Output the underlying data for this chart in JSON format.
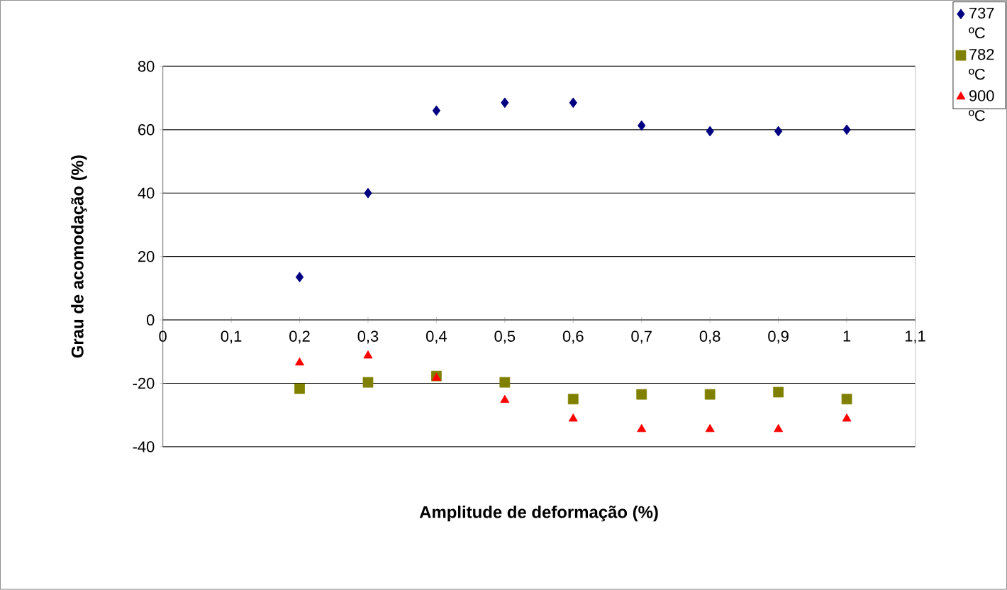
{
  "chart_data": {
    "type": "scatter",
    "xlabel": "Amplitude de deformação (%)",
    "ylabel": "Grau de acomodação (%)",
    "x": [
      0.2,
      0.3,
      0.4,
      0.5,
      0.6,
      0.7,
      0.8,
      0.9,
      1.0
    ],
    "series": [
      {
        "name": "737 ºC",
        "color": "#000080",
        "marker": "diamond",
        "values": [
          13.5,
          40,
          66,
          68.5,
          68.5,
          61.3,
          59.5,
          59.5,
          60
        ]
      },
      {
        "name": "782 ºC",
        "color": "#808000",
        "marker": "square",
        "values": [
          -21.7,
          -19.7,
          -17.7,
          -19.7,
          -25,
          -23.5,
          -23.5,
          -22.8,
          -25
        ]
      },
      {
        "name": "900 ºC",
        "color": "#ff0000",
        "marker": "triangle",
        "values": [
          -13.5,
          -11.3,
          -18.3,
          -25.3,
          -31.2,
          -34.5,
          -34.5,
          -34.5,
          -31.2
        ]
      }
    ],
    "xlim": [
      0,
      1.1
    ],
    "xticks": [
      0,
      {
        "value": 0.1,
        "label": "0,1"
      },
      {
        "value": 0.2,
        "label": "0,2"
      },
      {
        "value": 0.3,
        "label": "0,3"
      },
      {
        "value": 0.4,
        "label": "0,4"
      },
      {
        "value": 0.5,
        "label": "0,5"
      },
      {
        "value": 0.6,
        "label": "0,6"
      },
      {
        "value": 0.7,
        "label": "0,7"
      },
      {
        "value": 0.8,
        "label": "0,8"
      },
      {
        "value": 0.9,
        "label": "0,9"
      },
      1,
      {
        "value": 1.1,
        "label": "1,1"
      }
    ],
    "ylim": [
      -40,
      80
    ],
    "yticks": [
      -40,
      -20,
      0,
      20,
      40,
      60,
      80
    ],
    "grid": "y",
    "legend": "top right"
  }
}
